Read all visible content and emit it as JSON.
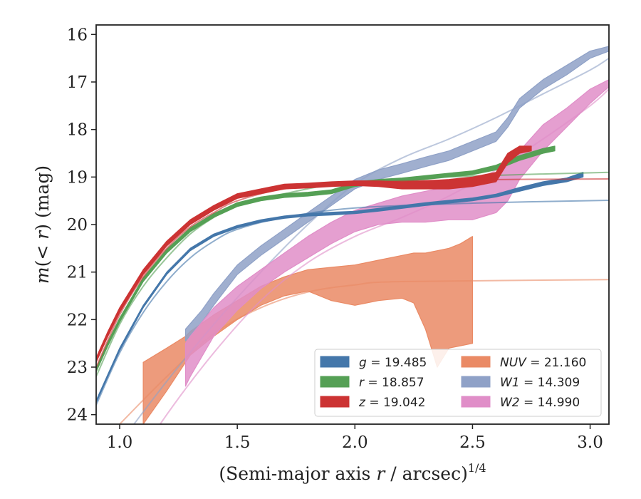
{
  "chart_data": {
    "type": "line",
    "xlabel": "(Semi-major axis r / arcsec)",
    "xlabel_parts": {
      "pre": "(Semi-major axis ",
      "var": "r",
      "post": " / arcsec)",
      "sup": "1/4"
    },
    "ylabel": "m(< r) (mag)",
    "ylabel_parts": {
      "m": "m",
      "paren_open": "(",
      "lt": "< ",
      "r": "r",
      "paren_close": ")",
      "unit": " (mag)"
    },
    "xlim": [
      0.9,
      3.08
    ],
    "ylim": [
      24.2,
      15.8
    ],
    "y_inverted": true,
    "x_ticks": [
      1.0,
      1.5,
      2.0,
      2.5,
      3.0
    ],
    "x_tick_labels": [
      "1.0",
      "1.5",
      "2.0",
      "2.5",
      "3.0"
    ],
    "y_ticks": [
      16,
      17,
      18,
      19,
      20,
      21,
      22,
      23,
      24
    ],
    "y_tick_labels": [
      "16",
      "17",
      "18",
      "19",
      "20",
      "21",
      "22",
      "23",
      "24"
    ],
    "grid": false,
    "legend_position": "lower-right",
    "series": [
      {
        "name": "g",
        "value": "19.485",
        "color": "#4477aa",
        "band": [
          [
            0.9,
            23.75,
            23.7
          ],
          [
            0.95,
            23.2,
            23.15
          ],
          [
            1.0,
            22.65,
            22.6
          ],
          [
            1.1,
            21.75,
            21.7
          ],
          [
            1.2,
            21.05,
            21.0
          ],
          [
            1.3,
            20.55,
            20.5
          ],
          [
            1.4,
            20.25,
            20.2
          ],
          [
            1.5,
            20.07,
            20.02
          ],
          [
            1.6,
            19.95,
            19.9
          ],
          [
            1.7,
            19.87,
            19.82
          ],
          [
            1.8,
            19.82,
            19.77
          ],
          [
            1.9,
            19.8,
            19.74
          ],
          [
            2.0,
            19.77,
            19.72
          ],
          [
            2.1,
            19.72,
            19.66
          ],
          [
            2.2,
            19.66,
            19.6
          ],
          [
            2.3,
            19.6,
            19.54
          ],
          [
            2.4,
            19.55,
            19.49
          ],
          [
            2.5,
            19.5,
            19.44
          ],
          [
            2.6,
            19.42,
            19.36
          ],
          [
            2.7,
            19.3,
            19.22
          ],
          [
            2.8,
            19.18,
            19.1
          ],
          [
            2.9,
            19.1,
            19.02
          ],
          [
            2.97,
            19.0,
            18.9
          ]
        ],
        "model": [
          [
            0.9,
            23.8
          ],
          [
            1.0,
            22.7
          ],
          [
            1.1,
            21.85
          ],
          [
            1.2,
            21.2
          ],
          [
            1.3,
            20.7
          ],
          [
            1.4,
            20.35
          ],
          [
            1.5,
            20.1
          ],
          [
            1.7,
            19.85
          ],
          [
            2.0,
            19.65
          ],
          [
            2.5,
            19.55
          ],
          [
            3.08,
            19.49
          ]
        ]
      },
      {
        "name": "r",
        "value": "18.857",
        "color": "#55a055",
        "band": [
          [
            0.9,
            23.1,
            23.02
          ],
          [
            0.95,
            22.55,
            22.47
          ],
          [
            1.0,
            22.05,
            21.97
          ],
          [
            1.1,
            21.2,
            21.12
          ],
          [
            1.2,
            20.6,
            20.52
          ],
          [
            1.3,
            20.15,
            20.07
          ],
          [
            1.4,
            19.85,
            19.77
          ],
          [
            1.5,
            19.62,
            19.54
          ],
          [
            1.6,
            19.5,
            19.42
          ],
          [
            1.7,
            19.43,
            19.35
          ],
          [
            1.8,
            19.4,
            19.32
          ],
          [
            1.9,
            19.35,
            19.27
          ],
          [
            2.0,
            19.2,
            19.12
          ],
          [
            2.1,
            19.13,
            19.05
          ],
          [
            2.2,
            19.1,
            19.02
          ],
          [
            2.3,
            19.05,
            18.97
          ],
          [
            2.4,
            19.0,
            18.92
          ],
          [
            2.5,
            18.95,
            18.87
          ],
          [
            2.6,
            18.85,
            18.75
          ],
          [
            2.7,
            18.65,
            18.55
          ],
          [
            2.8,
            18.5,
            18.4
          ],
          [
            2.85,
            18.45,
            18.35
          ]
        ],
        "model": [
          [
            0.9,
            23.2
          ],
          [
            1.0,
            22.1
          ],
          [
            1.1,
            21.3
          ],
          [
            1.2,
            20.7
          ],
          [
            1.3,
            20.2
          ],
          [
            1.4,
            19.85
          ],
          [
            1.5,
            19.6
          ],
          [
            1.7,
            19.35
          ],
          [
            2.0,
            19.1
          ],
          [
            2.5,
            18.98
          ],
          [
            3.08,
            18.9
          ]
        ]
      },
      {
        "name": "z",
        "value": "19.042",
        "color": "#cc3333",
        "band": [
          [
            0.9,
            22.9,
            22.8
          ],
          [
            0.95,
            22.35,
            22.25
          ],
          [
            1.0,
            21.85,
            21.75
          ],
          [
            1.1,
            21.05,
            20.95
          ],
          [
            1.2,
            20.45,
            20.35
          ],
          [
            1.3,
            20.0,
            19.9
          ],
          [
            1.4,
            19.7,
            19.6
          ],
          [
            1.5,
            19.45,
            19.35
          ],
          [
            1.6,
            19.35,
            19.25
          ],
          [
            1.7,
            19.25,
            19.15
          ],
          [
            1.8,
            19.23,
            19.13
          ],
          [
            1.9,
            19.2,
            19.1
          ],
          [
            2.0,
            19.18,
            19.08
          ],
          [
            2.1,
            19.2,
            19.08
          ],
          [
            2.2,
            19.25,
            19.1
          ],
          [
            2.3,
            19.25,
            19.08
          ],
          [
            2.4,
            19.25,
            19.05
          ],
          [
            2.5,
            19.2,
            19.0
          ],
          [
            2.6,
            19.1,
            18.9
          ],
          [
            2.65,
            18.7,
            18.5
          ],
          [
            2.7,
            18.5,
            18.35
          ],
          [
            2.75,
            18.45,
            18.35
          ]
        ],
        "model": [
          [
            0.9,
            23.0
          ],
          [
            1.0,
            21.9
          ],
          [
            1.1,
            21.1
          ],
          [
            1.2,
            20.5
          ],
          [
            1.3,
            20.05
          ],
          [
            1.4,
            19.75
          ],
          [
            1.5,
            19.5
          ],
          [
            1.7,
            19.25
          ],
          [
            2.0,
            19.12
          ],
          [
            2.5,
            19.06
          ],
          [
            3.08,
            19.04
          ]
        ]
      },
      {
        "name": "NUV",
        "value": "21.160",
        "color": "#ea8a65",
        "band": [
          [
            1.1,
            24.2,
            22.9
          ],
          [
            1.2,
            23.5,
            22.6
          ],
          [
            1.28,
            22.9,
            22.35
          ],
          [
            1.3,
            22.75,
            22.25
          ],
          [
            1.4,
            22.35,
            21.9
          ],
          [
            1.5,
            22.0,
            21.6
          ],
          [
            1.6,
            21.7,
            21.3
          ],
          [
            1.7,
            21.5,
            21.1
          ],
          [
            1.8,
            21.4,
            20.95
          ],
          [
            1.9,
            21.6,
            20.9
          ],
          [
            2.0,
            21.7,
            20.85
          ],
          [
            2.1,
            21.6,
            20.75
          ],
          [
            2.2,
            21.55,
            20.65
          ],
          [
            2.25,
            21.65,
            20.6
          ],
          [
            2.3,
            22.2,
            20.6
          ],
          [
            2.35,
            23.0,
            20.55
          ],
          [
            2.4,
            22.6,
            20.5
          ],
          [
            2.45,
            22.55,
            20.4
          ],
          [
            2.5,
            22.5,
            20.25
          ]
        ],
        "model": [
          [
            1.0,
            24.2
          ],
          [
            1.2,
            23.2
          ],
          [
            1.4,
            22.3
          ],
          [
            1.6,
            21.75
          ],
          [
            1.8,
            21.42
          ],
          [
            2.0,
            21.27
          ],
          [
            2.2,
            21.2
          ],
          [
            3.08,
            21.16
          ]
        ]
      },
      {
        "name": "W1",
        "value": "14.309",
        "color": "#8fa1c7",
        "band": [
          [
            1.28,
            22.45,
            22.2
          ],
          [
            1.35,
            22.05,
            21.8
          ],
          [
            1.4,
            21.7,
            21.45
          ],
          [
            1.5,
            21.05,
            20.85
          ],
          [
            1.6,
            20.65,
            20.45
          ],
          [
            1.7,
            20.3,
            20.1
          ],
          [
            1.8,
            19.95,
            19.75
          ],
          [
            1.9,
            19.6,
            19.4
          ],
          [
            2.0,
            19.25,
            19.05
          ],
          [
            2.1,
            19.05,
            18.85
          ],
          [
            2.2,
            18.92,
            18.72
          ],
          [
            2.3,
            18.78,
            18.58
          ],
          [
            2.4,
            18.65,
            18.45
          ],
          [
            2.5,
            18.45,
            18.25
          ],
          [
            2.6,
            18.25,
            18.05
          ],
          [
            2.65,
            17.95,
            17.75
          ],
          [
            2.7,
            17.55,
            17.35
          ],
          [
            2.8,
            17.15,
            16.95
          ],
          [
            2.9,
            16.85,
            16.65
          ],
          [
            3.0,
            16.5,
            16.35
          ],
          [
            3.08,
            16.35,
            16.25
          ]
        ],
        "model": [
          [
            1.0,
            24.6
          ],
          [
            1.2,
            23.3
          ],
          [
            1.4,
            22.1
          ],
          [
            1.6,
            21.0
          ],
          [
            1.8,
            20.0
          ],
          [
            2.0,
            19.15
          ],
          [
            2.2,
            18.6
          ],
          [
            2.4,
            18.2
          ],
          [
            2.6,
            17.75
          ],
          [
            2.8,
            17.25
          ],
          [
            3.0,
            16.75
          ],
          [
            3.08,
            16.5
          ]
        ]
      },
      {
        "name": "W2",
        "value": "14.990",
        "color": "#e08ec8",
        "band": [
          [
            1.28,
            23.4,
            22.5
          ],
          [
            1.3,
            23.2,
            22.35
          ],
          [
            1.4,
            22.35,
            21.75
          ],
          [
            1.5,
            21.8,
            21.3
          ],
          [
            1.6,
            21.35,
            20.95
          ],
          [
            1.7,
            21.0,
            20.6
          ],
          [
            1.8,
            20.7,
            20.25
          ],
          [
            1.9,
            20.4,
            19.95
          ],
          [
            2.0,
            20.15,
            19.7
          ],
          [
            2.1,
            20.0,
            19.55
          ],
          [
            2.2,
            19.95,
            19.4
          ],
          [
            2.3,
            19.95,
            19.3
          ],
          [
            2.4,
            19.9,
            19.2
          ],
          [
            2.5,
            19.9,
            19.1
          ],
          [
            2.6,
            19.75,
            19.0
          ],
          [
            2.65,
            19.5,
            18.75
          ],
          [
            2.7,
            19.05,
            18.45
          ],
          [
            2.8,
            18.45,
            17.9
          ],
          [
            2.9,
            17.95,
            17.55
          ],
          [
            3.0,
            17.45,
            17.15
          ],
          [
            3.08,
            17.1,
            16.95
          ]
        ],
        "model": [
          [
            1.0,
            25.5
          ],
          [
            1.2,
            24.0
          ],
          [
            1.4,
            22.7
          ],
          [
            1.6,
            21.6
          ],
          [
            1.8,
            20.8
          ],
          [
            2.0,
            20.25
          ],
          [
            2.2,
            19.85
          ],
          [
            2.4,
            19.4
          ],
          [
            2.6,
            18.85
          ],
          [
            2.8,
            18.2
          ],
          [
            3.0,
            17.5
          ],
          [
            3.08,
            17.15
          ]
        ]
      }
    ]
  }
}
